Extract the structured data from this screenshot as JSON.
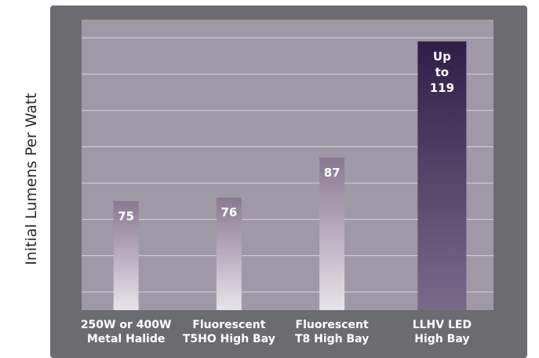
{
  "chart_data": {
    "type": "bar",
    "ylabel": "Initial Lumens Per Watt",
    "categories": [
      [
        "250W or 400W",
        "Metal Halide"
      ],
      [
        "Fluorescent",
        "T5HO High Bay"
      ],
      [
        "Fluorescent",
        "T8 High Bay"
      ],
      [
        "LLHV LED",
        "High Bay"
      ]
    ],
    "values": [
      75,
      76,
      87,
      119
    ],
    "data_labels": [
      [
        "75"
      ],
      [
        "76"
      ],
      [
        "87"
      ],
      [
        "Up",
        "to",
        "119"
      ]
    ],
    "ylim": [
      45,
      125
    ],
    "grid": true,
    "colors": {
      "frame": "#6c6b70",
      "plot_bg": "#9f98a6",
      "grid": "#d9d4dc",
      "bar_top": "#8a7893",
      "bar_bottom": "#e8e4ea",
      "highlight_top": "#2f1f47",
      "highlight_bottom": "#7a6a8a"
    }
  }
}
